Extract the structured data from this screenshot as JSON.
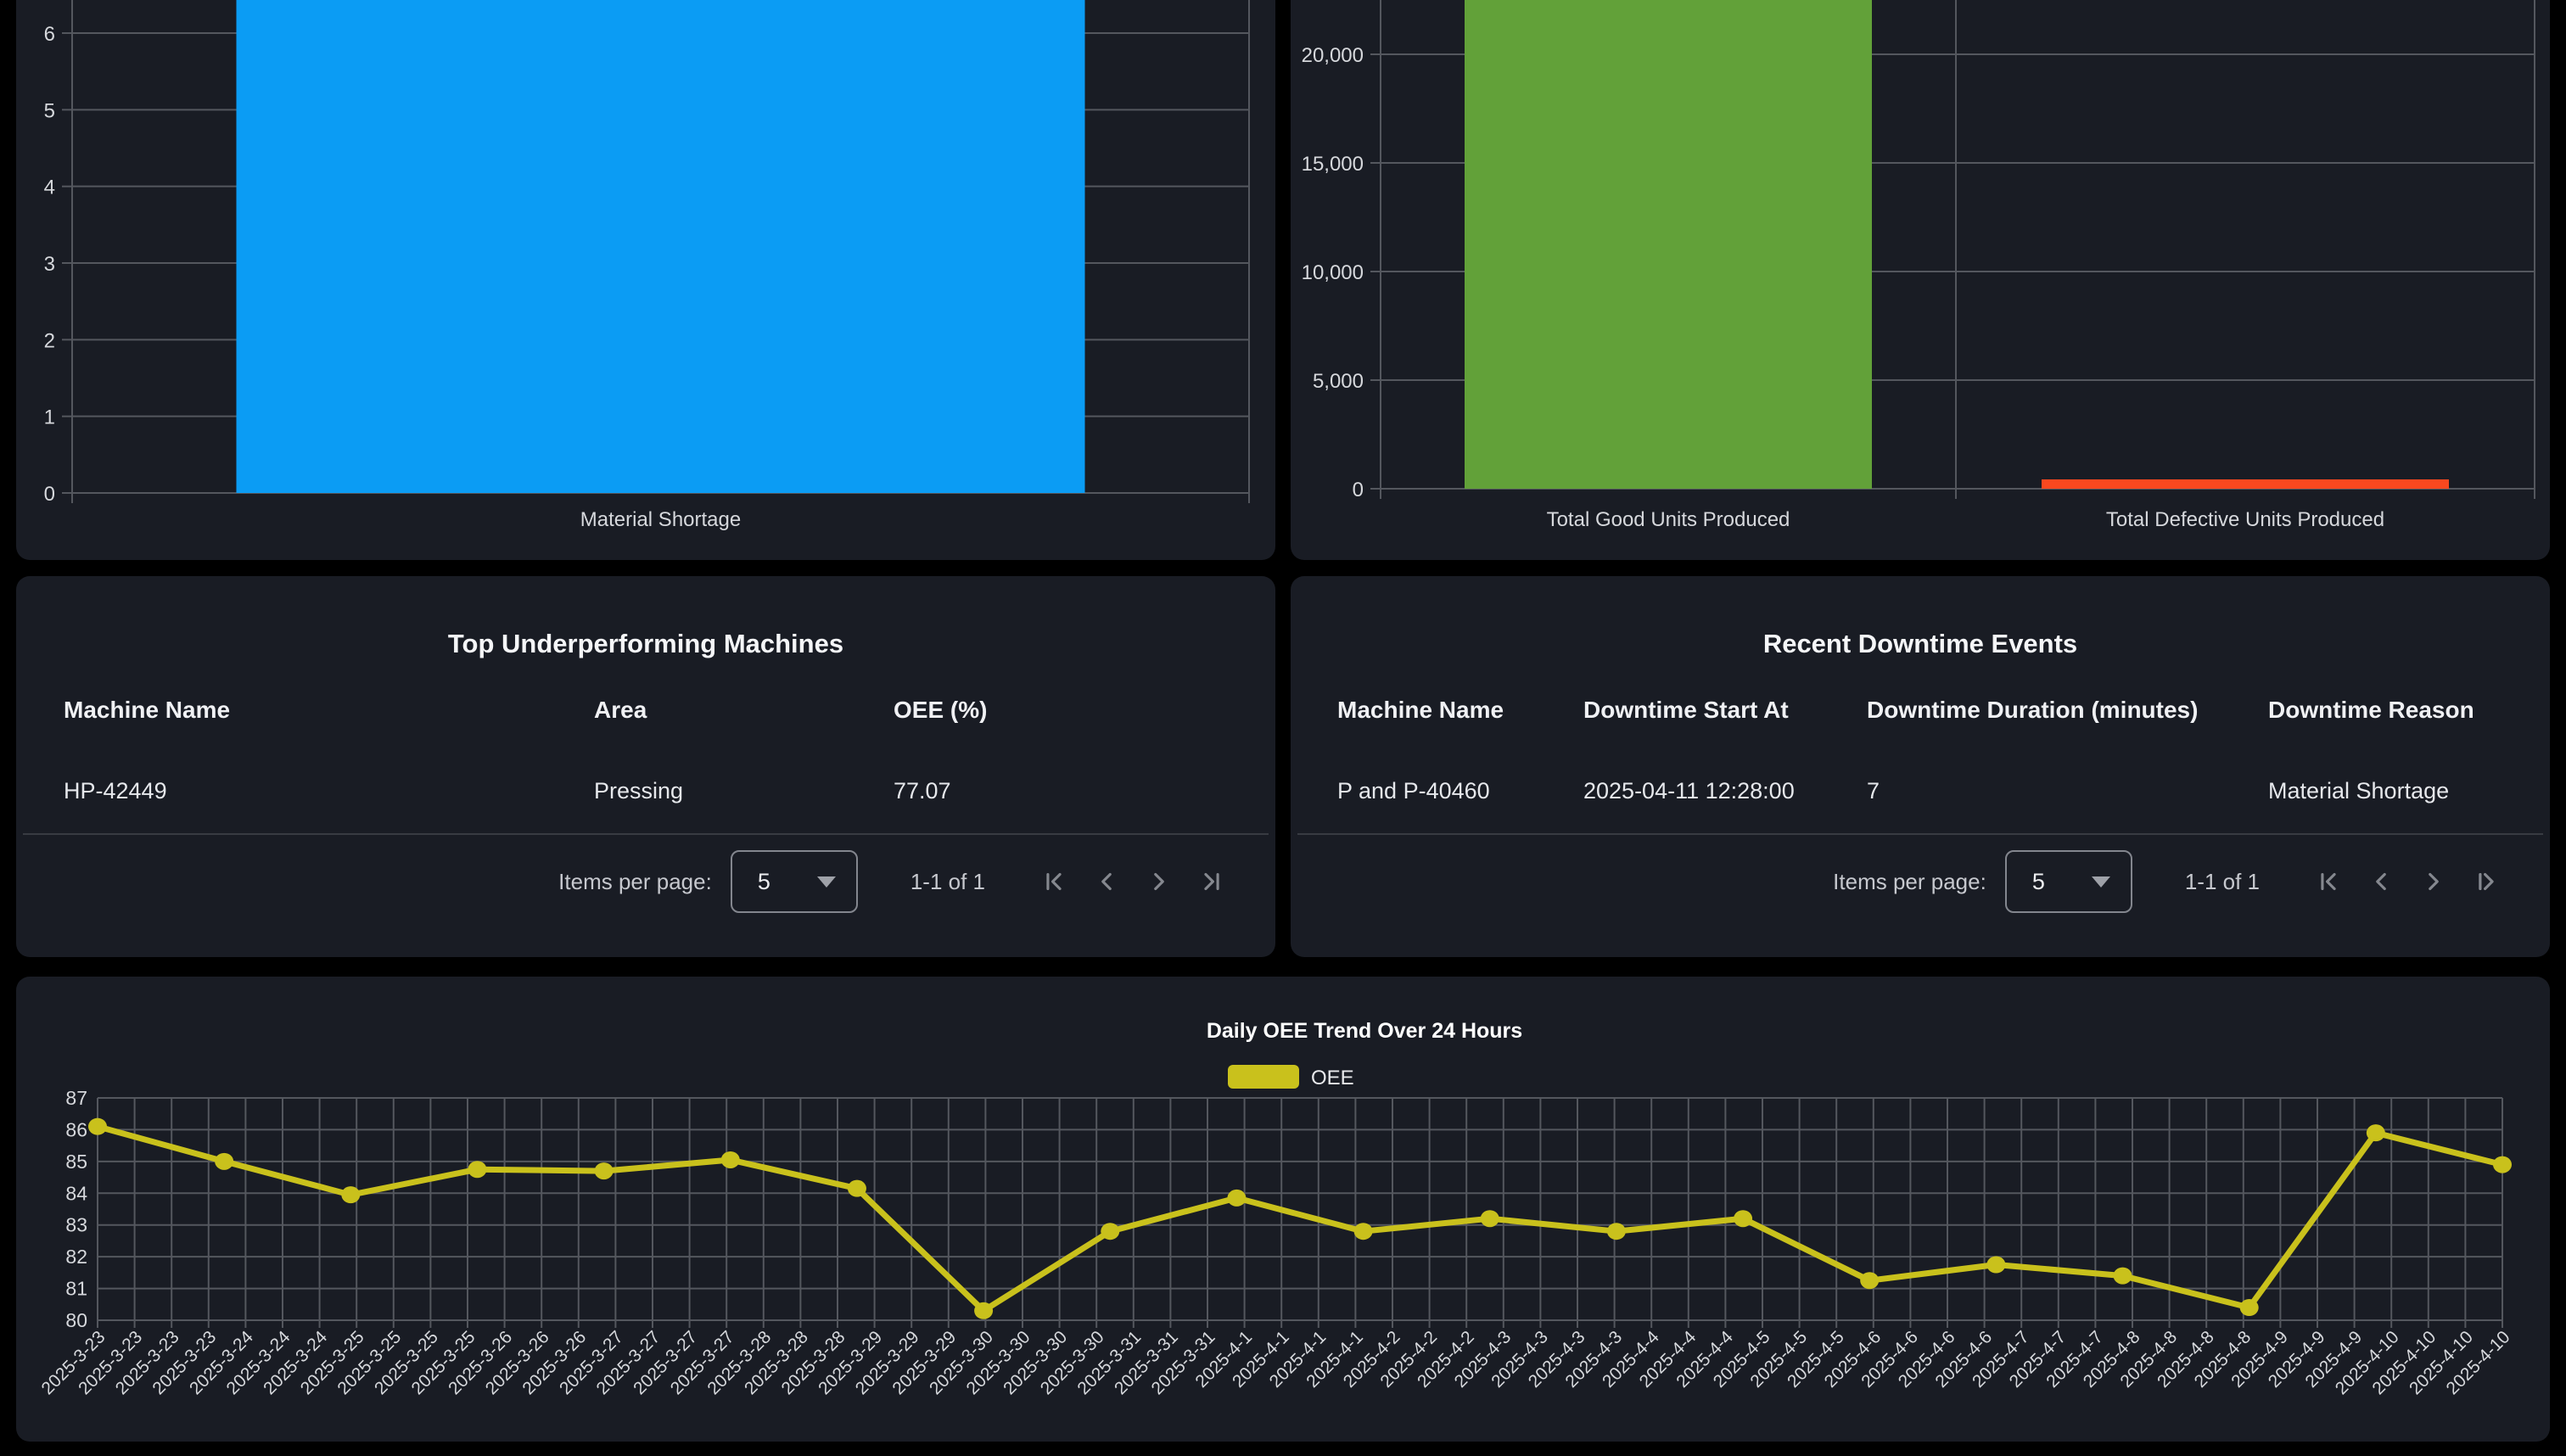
{
  "theme": {
    "page_bg": "#000000",
    "card_bg": "#191C24",
    "grid_color": "#54575E",
    "text_primary": "#F2F3F5",
    "text_secondary": "#C6C8CE",
    "axis_text": "#D6D8DC",
    "icon_color": "#85888F",
    "divider": "#383B42",
    "blue": "#0B9CF4",
    "green": "#62A139",
    "red": "#F9481F",
    "yellow": "#C9C11C"
  },
  "cards": {
    "underperforming": {
      "title": "Top Underperforming Machines",
      "columns": [
        "Machine Name",
        "Area",
        "OEE (%)"
      ],
      "rows": [
        [
          "HP-42449",
          "Pressing",
          "77.07"
        ]
      ]
    },
    "downtime_events": {
      "title": "Recent Downtime Events",
      "columns": [
        "Machine Name",
        "Downtime Start At",
        "Downtime Duration (minutes)",
        "Downtime Reason"
      ],
      "rows": [
        [
          "P and P-40460",
          "2025-04-11 12:28:00",
          "7",
          "Material Shortage"
        ]
      ]
    }
  },
  "paginator": {
    "items_per_page_label": "Items per page:",
    "page_size": "5",
    "range_label": "1-1 of 1",
    "icons": [
      "first-page-icon",
      "chevron-left-icon",
      "chevron-right-icon",
      "last-page-icon"
    ]
  },
  "chart_data": [
    {
      "id": "downtime_by_reason",
      "type": "bar",
      "categories": [
        "Material Shortage"
      ],
      "values": [
        7
      ],
      "bar_colors": [
        "#0B9CF4"
      ],
      "y_ticks": [
        0,
        1,
        2,
        3,
        4,
        5,
        6
      ],
      "ylim_visible": [
        0,
        6.45
      ],
      "clipped_top": true,
      "grid": true
    },
    {
      "id": "units_produced",
      "type": "bar",
      "categories": [
        "Total Good Units Produced",
        "Total Defective Units Produced"
      ],
      "values": [
        23000,
        430
      ],
      "bar_colors": [
        "#62A139",
        "#F9481F"
      ],
      "y_tick_labels": [
        "0",
        "5,000",
        "10,000",
        "15,000",
        "20,000"
      ],
      "y_tick_values": [
        0,
        5000,
        10000,
        15000,
        20000
      ],
      "ylim_visible": [
        0,
        22500
      ],
      "clipped_top": true,
      "grid": true
    },
    {
      "id": "oee_trend",
      "type": "line",
      "title": "Daily OEE Trend Over 24 Hours",
      "legend": [
        "OEE"
      ],
      "line_color": "#C9C11C",
      "ylim": [
        80,
        87
      ],
      "y_ticks": [
        80,
        81,
        82,
        83,
        84,
        85,
        86,
        87
      ],
      "values": [
        86.1,
        85.0,
        83.95,
        84.75,
        84.7,
        85.05,
        84.15,
        80.3,
        82.8,
        83.85,
        82.8,
        83.2,
        82.8,
        83.2,
        81.25,
        81.75,
        81.4,
        80.4,
        85.9,
        84.9
      ],
      "x_tick_labels": [
        "2025-3-23",
        "2025-3-23",
        "2025-3-23",
        "2025-3-23",
        "2025-3-24",
        "2025-3-24",
        "2025-3-24",
        "2025-3-25",
        "2025-3-25",
        "2025-3-25",
        "2025-3-25",
        "2025-3-26",
        "2025-3-26",
        "2025-3-26",
        "2025-3-27",
        "2025-3-27",
        "2025-3-27",
        "2025-3-27",
        "2025-3-28",
        "2025-3-28",
        "2025-3-28",
        "2025-3-29",
        "2025-3-29",
        "2025-3-29",
        "2025-3-30",
        "2025-3-30",
        "2025-3-30",
        "2025-3-30",
        "2025-3-31",
        "2025-3-31",
        "2025-3-31",
        "2025-4-1",
        "2025-4-1",
        "2025-4-1",
        "2025-4-1",
        "2025-4-2",
        "2025-4-2",
        "2025-4-2",
        "2025-4-3",
        "2025-4-3",
        "2025-4-3",
        "2025-4-3",
        "2025-4-4",
        "2025-4-4",
        "2025-4-4",
        "2025-4-5",
        "2025-4-5",
        "2025-4-5",
        "2025-4-6",
        "2025-4-6",
        "2025-4-6",
        "2025-4-6",
        "2025-4-7",
        "2025-4-7",
        "2025-4-7",
        "2025-4-8",
        "2025-4-8",
        "2025-4-8",
        "2025-4-8",
        "2025-4-9",
        "2025-4-9",
        "2025-4-9",
        "2025-4-10",
        "2025-4-10",
        "2025-4-10",
        "2025-4-10"
      ],
      "grid": true,
      "legend_position": "top-center"
    }
  ]
}
